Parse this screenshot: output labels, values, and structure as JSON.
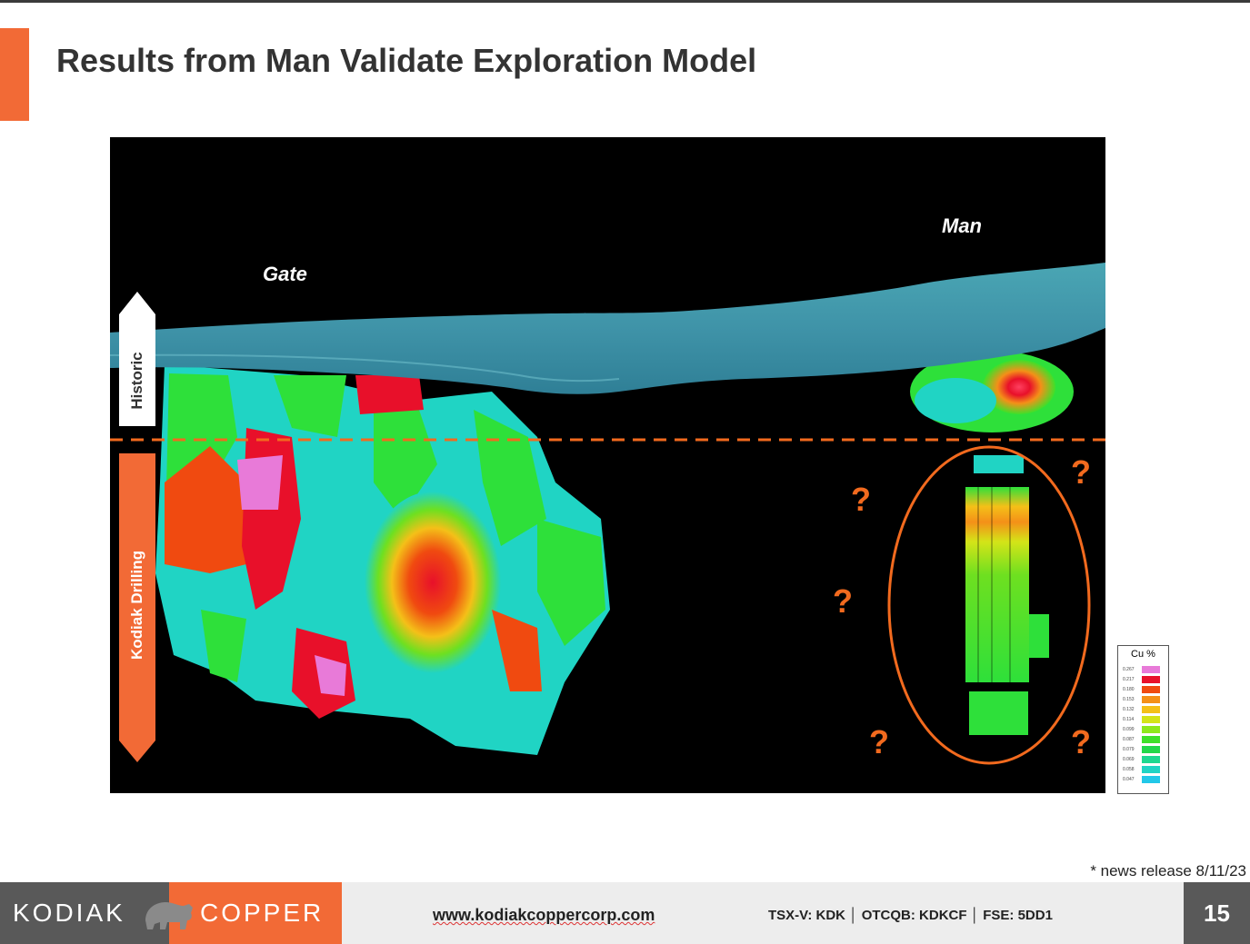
{
  "title": "Results from Man Validate Exploration Model",
  "figure": {
    "label_gate": "Gate",
    "label_man": "Man",
    "arrow_historic": "Historic",
    "arrow_kodiak": "Kodiak Drilling",
    "question_mark": "?",
    "colors": {
      "accent": "#f26a36",
      "surface": "#3f93a8",
      "cyan": "#20d4c4",
      "green": "#2ee03a",
      "red": "#e8102a",
      "pink": "#e87ad8"
    }
  },
  "legend": {
    "title": "Cu %",
    "values": [
      "0.267",
      "0.217",
      "0.180",
      "0.153",
      "0.132",
      "0.114",
      "0.099",
      "0.087",
      "0.079",
      "0.069",
      "0.058",
      "0.047"
    ],
    "colors": [
      "#e87ad8",
      "#e8102a",
      "#f04a10",
      "#f49018",
      "#f4c018",
      "#d4e418",
      "#8ee81c",
      "#3ee02a",
      "#22d84a",
      "#1ed890",
      "#20d4c4",
      "#22c8e8"
    ]
  },
  "footnote": "* news release 8/11/23",
  "footer": {
    "logo_left": "KODIAK",
    "logo_right": "COPPER",
    "url": "www.kodiakcoppercorp.com",
    "tickers": "TSX-V: KDK  │  OTCQB: KDKCF  │  FSE: 5DD1",
    "page": "15"
  }
}
